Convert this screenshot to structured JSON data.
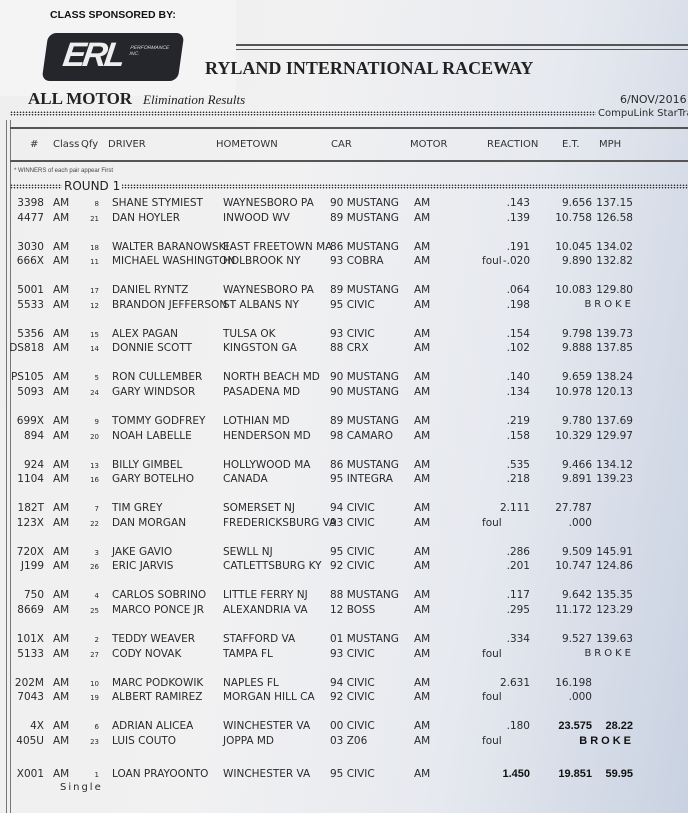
{
  "sponsor": {
    "label": "CLASS SPONSORED BY:",
    "logo_text": "ERL",
    "logo_sub": "PERFORMANCE INC."
  },
  "header": {
    "title": "RYLAND INTERNATIONAL RACEWAY",
    "class_name": "ALL MOTOR",
    "subtitle": "Elimination Results",
    "date": "6/NOV/2016",
    "brand": "CompuLink  StarTrak"
  },
  "columns": {
    "num": "#",
    "cls": "Class",
    "qfy": "Qfy",
    "driver": "DRIVER",
    "hometown": "HOMETOWN",
    "car": "CAR",
    "motor": "MOTOR",
    "reaction": "REACTION",
    "et": "E.T.",
    "mph": "MPH"
  },
  "note": "* WINNERS of each pair appear First",
  "round_label": "ROUND 1",
  "single_label": "Single",
  "pairs": [
    [
      {
        "num": "3398",
        "cls": "AM",
        "qfy": "8",
        "driver": "SHANE STYMIEST",
        "hometown": "WAYNESBORO PA",
        "car": "90 MUSTANG",
        "motor": "AM",
        "foul": "",
        "reaction": ".143",
        "et": "9.656",
        "mph": "137.15"
      },
      {
        "num": "4477",
        "cls": "AM",
        "qfy": "21",
        "driver": "DAN HOYLER",
        "hometown": "INWOOD WV",
        "car": "89 MUSTANG",
        "motor": "AM",
        "foul": "",
        "reaction": ".139",
        "et": "10.758",
        "mph": "126.58"
      }
    ],
    [
      {
        "num": "3030",
        "cls": "AM",
        "qfy": "18",
        "driver": "WALTER BARANOWSKI",
        "hometown": "EAST FREETOWN MA",
        "car": "86 MUSTANG",
        "motor": "AM",
        "foul": "",
        "reaction": ".191",
        "et": "10.045",
        "mph": "134.02"
      },
      {
        "num": "666X",
        "cls": "AM",
        "qfy": "11",
        "driver": "MICHAEL WASHINGTON",
        "hometown": "HOLBROOK NY",
        "car": "93 COBRA",
        "motor": "AM",
        "foul": "foul",
        "reaction": "-.020",
        "et": "9.890",
        "mph": "132.82"
      }
    ],
    [
      {
        "num": "5001",
        "cls": "AM",
        "qfy": "17",
        "driver": "DANIEL RYNTZ",
        "hometown": "WAYNESBORO PA",
        "car": "89 MUSTANG",
        "motor": "AM",
        "foul": "",
        "reaction": ".064",
        "et": "10.083",
        "mph": "129.80"
      },
      {
        "num": "5533",
        "cls": "AM",
        "qfy": "12",
        "driver": "BRANDON JEFFERSON",
        "hometown": "ST ALBANS NY",
        "car": "95 CIVIC",
        "motor": "AM",
        "foul": "",
        "reaction": ".198",
        "broke": "BROKE"
      }
    ],
    [
      {
        "num": "5356",
        "cls": "AM",
        "qfy": "15",
        "driver": "ALEX PAGAN",
        "hometown": "TULSA OK",
        "car": "93 CIVIC",
        "motor": "AM",
        "foul": "",
        "reaction": ".154",
        "et": "9.798",
        "mph": "139.73"
      },
      {
        "num": "DS818",
        "cls": "AM",
        "qfy": "14",
        "driver": "DONNIE SCOTT",
        "hometown": "KINGSTON GA",
        "car": "88 CRX",
        "motor": "AM",
        "foul": "",
        "reaction": ".102",
        "et": "9.888",
        "mph": "137.85"
      }
    ],
    [
      {
        "num": "PS105",
        "cls": "AM",
        "qfy": "5",
        "driver": "RON CULLEMBER",
        "hometown": "NORTH BEACH MD",
        "car": "90 MUSTANG",
        "motor": "AM",
        "foul": "",
        "reaction": ".140",
        "et": "9.659",
        "mph": "138.24"
      },
      {
        "num": "5093",
        "cls": "AM",
        "qfy": "24",
        "driver": "GARY WINDSOR",
        "hometown": "PASADENA MD",
        "car": "90 MUSTANG",
        "motor": "AM",
        "foul": "",
        "reaction": ".134",
        "et": "10.978",
        "mph": "120.13"
      }
    ],
    [
      {
        "num": "699X",
        "cls": "AM",
        "qfy": "9",
        "driver": "TOMMY GODFREY",
        "hometown": "LOTHIAN MD",
        "car": "89 MUSTANG",
        "motor": "AM",
        "foul": "",
        "reaction": ".219",
        "et": "9.780",
        "mph": "137.69"
      },
      {
        "num": "894",
        "cls": "AM",
        "qfy": "20",
        "driver": "NOAH LABELLE",
        "hometown": "HENDERSON MD",
        "car": "98 CAMARO",
        "motor": "AM",
        "foul": "",
        "reaction": ".158",
        "et": "10.329",
        "mph": "129.97"
      }
    ],
    [
      {
        "num": "924",
        "cls": "AM",
        "qfy": "13",
        "driver": "BILLY GIMBEL",
        "hometown": "HOLLYWOOD MA",
        "car": "86 MUSTANG",
        "motor": "AM",
        "foul": "",
        "reaction": ".535",
        "et": "9.466",
        "mph": "134.12"
      },
      {
        "num": "1104",
        "cls": "AM",
        "qfy": "16",
        "driver": "GARY BOTELHO",
        "hometown": "CANADA",
        "car": "95 INTEGRA",
        "motor": "AM",
        "foul": "",
        "reaction": ".218",
        "et": "9.891",
        "mph": "139.23"
      }
    ],
    [
      {
        "num": "182T",
        "cls": "AM",
        "qfy": "7",
        "driver": "TIM GREY",
        "hometown": "SOMERSET NJ",
        "car": "94 CIVIC",
        "motor": "AM",
        "foul": "",
        "reaction": "2.111",
        "et": "27.787",
        "mph": ""
      },
      {
        "num": "123X",
        "cls": "AM",
        "qfy": "22",
        "driver": "DAN MORGAN",
        "hometown": "FREDERICKSBURG VA",
        "car": "93 CIVIC",
        "motor": "AM",
        "foul": "foul",
        "reaction": "",
        "et": ".000",
        "mph": ""
      }
    ],
    [
      {
        "num": "720X",
        "cls": "AM",
        "qfy": "3",
        "driver": "JAKE GAVIO",
        "hometown": "SEWLL NJ",
        "car": "95 CIVIC",
        "motor": "AM",
        "foul": "",
        "reaction": ".286",
        "et": "9.509",
        "mph": "145.91"
      },
      {
        "num": "J199",
        "cls": "AM",
        "qfy": "26",
        "driver": "ERIC JARVIS",
        "hometown": "CATLETTSBURG KY",
        "car": "92 CIVIC",
        "motor": "AM",
        "foul": "",
        "reaction": ".201",
        "et": "10.747",
        "mph": "124.86"
      }
    ],
    [
      {
        "num": "750",
        "cls": "AM",
        "qfy": "4",
        "driver": "CARLOS SOBRINO",
        "hometown": "LITTLE FERRY NJ",
        "car": "88 MUSTANG",
        "motor": "AM",
        "foul": "",
        "reaction": ".117",
        "et": "9.642",
        "mph": "135.35"
      },
      {
        "num": "8669",
        "cls": "AM",
        "qfy": "25",
        "driver": "MARCO PONCE JR",
        "hometown": "ALEXANDRIA VA",
        "car": "12 BOSS",
        "motor": "AM",
        "foul": "",
        "reaction": ".295",
        "et": "11.172",
        "mph": "123.29"
      }
    ],
    [
      {
        "num": "101X",
        "cls": "AM",
        "qfy": "2",
        "driver": "TEDDY WEAVER",
        "hometown": "STAFFORD VA",
        "car": "01 MUSTANG",
        "motor": "AM",
        "foul": "",
        "reaction": ".334",
        "et": "9.527",
        "mph": "139.63"
      },
      {
        "num": "5133",
        "cls": "AM",
        "qfy": "27",
        "driver": "CODY NOVAK",
        "hometown": "TAMPA FL",
        "car": "93 CIVIC",
        "motor": "AM",
        "foul": "foul",
        "reaction": "",
        "broke": "BROKE"
      }
    ],
    [
      {
        "num": "202M",
        "cls": "AM",
        "qfy": "10",
        "driver": "MARC PODKOWIK",
        "hometown": "NAPLES FL",
        "car": "94 CIVIC",
        "motor": "AM",
        "foul": "",
        "reaction": "2.631",
        "et": "16.198",
        "mph": ""
      },
      {
        "num": "7043",
        "cls": "AM",
        "qfy": "19",
        "driver": "ALBERT RAMIREZ",
        "hometown": "MORGAN HILL CA",
        "car": "92 CIVIC",
        "motor": "AM",
        "foul": "foul",
        "reaction": "",
        "et": ".000",
        "mph": ""
      }
    ],
    [
      {
        "num": "4X",
        "cls": "AM",
        "qfy": "6",
        "driver": "ADRIAN ALICEA",
        "hometown": "WINCHESTER VA",
        "car": "00 CIVIC",
        "motor": "AM",
        "foul": "",
        "reaction": ".180",
        "et": "23.575",
        "mph": "28.22"
      },
      {
        "num": "405U",
        "cls": "AM",
        "qfy": "23",
        "driver": "LUIS COUTO",
        "hometown": "JOPPA MD",
        "car": "03 Z06",
        "motor": "AM",
        "foul": "foul",
        "reaction": "",
        "broke": "BROKE"
      }
    ],
    [
      {
        "num": "X001",
        "cls": "AM",
        "qfy": "1",
        "driver": "LOAN PRAYOONTO",
        "hometown": "WINCHESTER VA",
        "car": "95 CIVIC",
        "motor": "AM",
        "foul": "",
        "reaction": "1.450",
        "et": "19.851",
        "mph": "59.95"
      }
    ]
  ]
}
